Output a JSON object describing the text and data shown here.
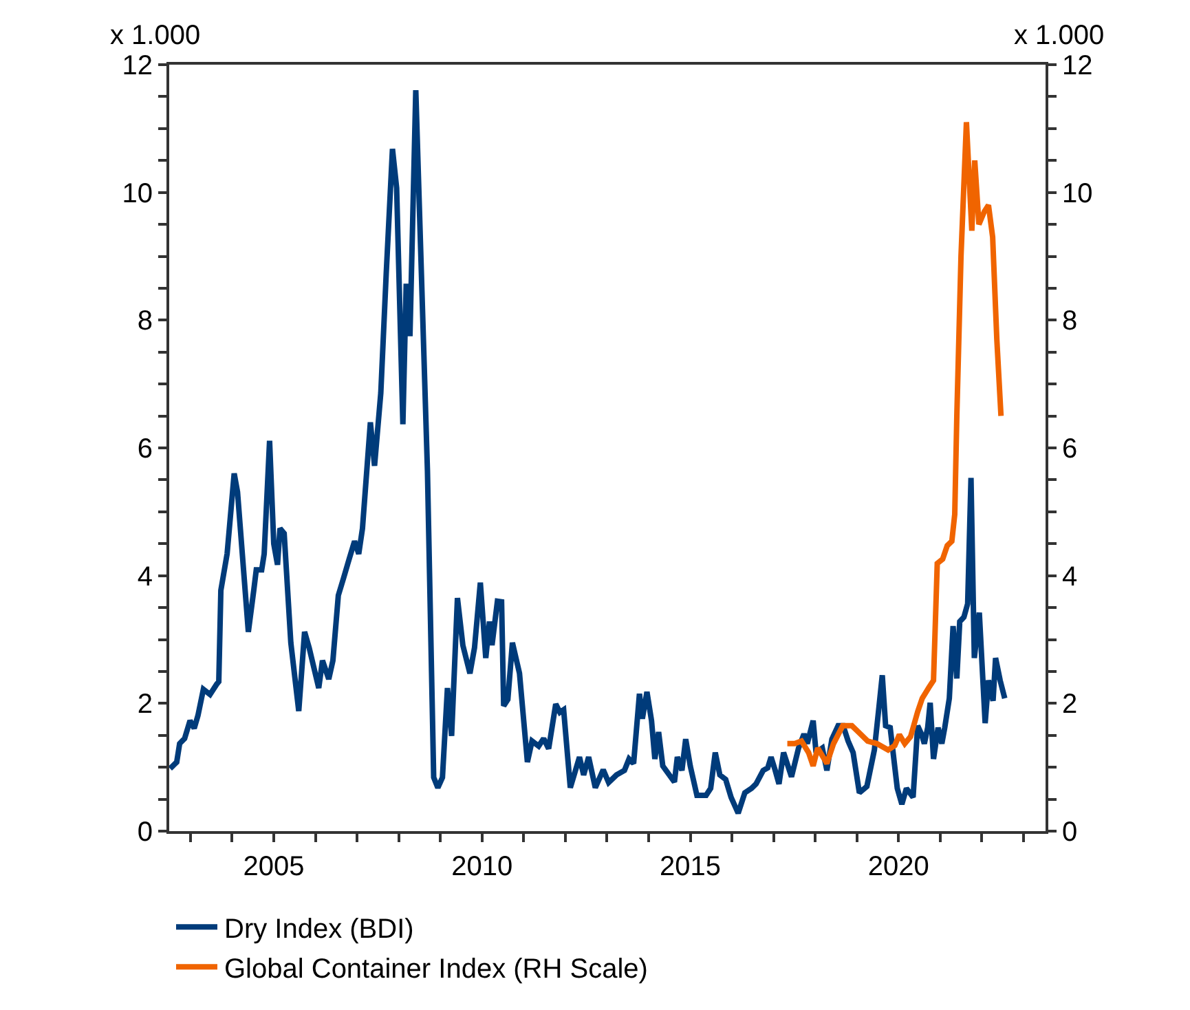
{
  "chart_data": {
    "type": "line",
    "annotations": [
      "x 1.000",
      "x 1.000"
    ],
    "series": [
      {
        "name": "Dry Index (BDI)",
        "color": "#003b7a",
        "x": [
          2002.51,
          2002.67,
          2002.74,
          2002.86,
          2002.99,
          2003.09,
          2003.18,
          2003.31,
          2003.47,
          2003.63,
          2003.68,
          2003.73,
          2003.88,
          2004.05,
          2004.13,
          2004.39,
          2004.52,
          2004.58,
          2004.71,
          2004.77,
          2004.9,
          2005.0,
          2005.09,
          2005.15,
          2005.25,
          2005.41,
          2005.6,
          2005.74,
          2005.85,
          2006.08,
          2006.17,
          2006.32,
          2006.42,
          2006.55,
          2006.68,
          2006.81,
          2006.94,
          2007.04,
          2007.13,
          2007.32,
          2007.42,
          2007.57,
          2007.7,
          2007.85,
          2007.95,
          2008.1,
          2008.18,
          2008.27,
          2008.41,
          2008.69,
          2008.84,
          2008.94,
          2009.05,
          2009.17,
          2009.27,
          2009.41,
          2009.54,
          2009.71,
          2009.82,
          2009.96,
          2010.09,
          2010.18,
          2010.24,
          2010.37,
          2010.47,
          2010.52,
          2010.62,
          2010.73,
          2010.9,
          2011.09,
          2011.2,
          2011.36,
          2011.48,
          2011.6,
          2011.77,
          2011.87,
          2011.96,
          2012.12,
          2012.34,
          2012.44,
          2012.56,
          2012.72,
          2012.91,
          2013.04,
          2013.23,
          2013.42,
          2013.53,
          2013.64,
          2013.78,
          2013.85,
          2013.96,
          2014.07,
          2014.15,
          2014.24,
          2014.34,
          2014.62,
          2014.69,
          2014.8,
          2014.89,
          2015.0,
          2015.16,
          2015.38,
          2015.49,
          2015.6,
          2015.71,
          2015.85,
          2015.98,
          2016.15,
          2016.31,
          2016.47,
          2016.58,
          2016.75,
          2016.86,
          2016.94,
          2017.04,
          2017.13,
          2017.24,
          2017.43,
          2017.6,
          2017.73,
          2017.81,
          2017.95,
          2018.02,
          2018.17,
          2018.28,
          2018.4,
          2018.55,
          2018.67,
          2018.79,
          2018.91,
          2019.06,
          2019.24,
          2019.42,
          2019.53,
          2019.61,
          2019.69,
          2019.8,
          2019.97,
          2020.08,
          2020.19,
          2020.35,
          2020.46,
          2020.55,
          2020.62,
          2020.7,
          2020.76,
          2020.84,
          2020.95,
          2021.04,
          2021.11,
          2021.22,
          2021.31,
          2021.4,
          2021.47,
          2021.57,
          2021.66,
          2021.74,
          2021.82,
          2021.94,
          2022.08,
          2022.16,
          2022.27,
          2022.33,
          2022.44,
          2022.55
        ],
        "values": [
          0.98,
          1.08,
          1.37,
          1.45,
          1.73,
          1.61,
          1.81,
          2.22,
          2.14,
          2.3,
          2.34,
          3.77,
          4.34,
          5.6,
          5.31,
          3.12,
          3.77,
          4.09,
          4.09,
          4.34,
          6.11,
          4.5,
          4.17,
          4.74,
          4.66,
          2.95,
          1.88,
          3.12,
          2.87,
          2.24,
          2.67,
          2.38,
          2.67,
          3.69,
          3.97,
          4.26,
          4.54,
          4.34,
          4.74,
          6.4,
          5.72,
          6.86,
          8.73,
          10.68,
          10.07,
          6.37,
          8.57,
          7.75,
          11.6,
          5.64,
          0.84,
          0.68,
          0.84,
          2.24,
          1.49,
          3.65,
          2.91,
          2.47,
          2.87,
          3.89,
          2.71,
          3.28,
          2.91,
          3.6,
          3.59,
          1.96,
          2.06,
          2.95,
          2.47,
          1.08,
          1.41,
          1.33,
          1.45,
          1.29,
          1.99,
          1.86,
          1.9,
          0.68,
          1.16,
          0.88,
          1.16,
          0.68,
          0.96,
          0.76,
          0.88,
          0.95,
          1.13,
          1.06,
          2.15,
          1.76,
          2.18,
          1.73,
          1.13,
          1.55,
          1.02,
          0.77,
          1.16,
          0.95,
          1.44,
          1.02,
          0.56,
          0.56,
          0.67,
          1.23,
          0.88,
          0.81,
          0.53,
          0.28,
          0.6,
          0.67,
          0.74,
          0.95,
          0.99,
          1.16,
          0.95,
          0.74,
          1.23,
          0.85,
          1.3,
          1.52,
          1.37,
          1.73,
          1.23,
          1.3,
          0.95,
          1.44,
          1.65,
          1.65,
          1.41,
          1.23,
          0.6,
          0.7,
          1.27,
          1.94,
          2.44,
          1.65,
          1.62,
          0.67,
          0.42,
          0.67,
          0.53,
          1.65,
          1.52,
          1.37,
          1.62,
          2.01,
          1.13,
          1.62,
          1.37,
          1.62,
          2.08,
          3.21,
          2.39,
          3.28,
          3.35,
          3.56,
          5.53,
          2.71,
          3.42,
          1.69,
          2.36,
          2.04,
          2.71,
          2.36,
          2.08
        ]
      },
      {
        "name": "Global Container Index (RH Scale)",
        "color": "#f06400",
        "axis": "y2",
        "x": [
          2017.33,
          2017.51,
          2017.67,
          2017.84,
          2017.95,
          2018.06,
          2018.28,
          2018.44,
          2018.66,
          2018.88,
          2019.04,
          2019.26,
          2019.48,
          2019.75,
          2019.91,
          2020.02,
          2020.15,
          2020.29,
          2020.46,
          2020.57,
          2020.73,
          2020.84,
          2020.93,
          2021.06,
          2021.17,
          2021.28,
          2021.35,
          2021.4,
          2021.5,
          2021.63,
          2021.76,
          2021.83,
          2021.93,
          2022.06,
          2022.16,
          2022.26,
          2022.36,
          2022.46
        ],
        "values": [
          1.37,
          1.37,
          1.41,
          1.23,
          1.02,
          1.3,
          1.06,
          1.37,
          1.65,
          1.65,
          1.55,
          1.41,
          1.37,
          1.27,
          1.34,
          1.51,
          1.37,
          1.48,
          1.87,
          2.08,
          2.25,
          2.36,
          4.19,
          4.26,
          4.47,
          4.54,
          4.96,
          6.5,
          9.0,
          11.1,
          9.4,
          10.5,
          9.5,
          9.7,
          9.8,
          9.3,
          7.7,
          6.5
        ]
      }
    ],
    "xlim": [
      2002.49,
      2023.53
    ],
    "xticks": [
      {
        "value": 2003,
        "label": null
      },
      {
        "value": 2004,
        "label": null
      },
      2005,
      {
        "value": 2006,
        "label": null
      },
      {
        "value": 2007,
        "label": null
      },
      {
        "value": 2008,
        "label": null
      },
      {
        "value": 2009,
        "label": null
      },
      2010,
      {
        "value": 2011,
        "label": null
      },
      {
        "value": 2012,
        "label": null
      },
      {
        "value": 2013,
        "label": null
      },
      {
        "value": 2014,
        "label": null
      },
      2015,
      {
        "value": 2016,
        "label": null
      },
      {
        "value": 2017,
        "label": null
      },
      {
        "value": 2018,
        "label": null
      },
      {
        "value": 2019,
        "label": null
      },
      2020,
      {
        "value": 2021,
        "label": null
      },
      {
        "value": 2022,
        "label": null
      },
      {
        "value": 2023,
        "label": null
      }
    ],
    "ylim": [
      0,
      12
    ],
    "yticks": [
      0,
      {
        "value": 0.5,
        "label": null
      },
      {
        "value": 1,
        "label": null
      },
      {
        "value": 1.5,
        "label": null
      },
      2,
      {
        "value": 2.5,
        "label": null
      },
      {
        "value": 3,
        "label": null
      },
      {
        "value": 3.5,
        "label": null
      },
      4,
      {
        "value": 4.5,
        "label": null
      },
      {
        "value": 5,
        "label": null
      },
      {
        "value": 5.5,
        "label": null
      },
      6,
      {
        "value": 6.5,
        "label": null
      },
      {
        "value": 7,
        "label": null
      },
      {
        "value": 7.5,
        "label": null
      },
      8,
      {
        "value": 8.5,
        "label": null
      },
      {
        "value": 9,
        "label": null
      },
      {
        "value": 9.5,
        "label": null
      },
      10,
      {
        "value": 10.5,
        "label": null
      },
      {
        "value": 11,
        "label": null
      },
      {
        "value": 11.5,
        "label": null
      },
      12
    ],
    "y2lim": [
      0,
      12
    ],
    "y2ticks": [
      0,
      {
        "value": 0.5,
        "label": null
      },
      {
        "value": 1,
        "label": null
      },
      {
        "value": 1.5,
        "label": null
      },
      2,
      {
        "value": 2.5,
        "label": null
      },
      {
        "value": 3,
        "label": null
      },
      {
        "value": 3.5,
        "label": null
      },
      4,
      {
        "value": 4.5,
        "label": null
      },
      {
        "value": 5,
        "label": null
      },
      {
        "value": 5.5,
        "label": null
      },
      6,
      {
        "value": 6.5,
        "label": null
      },
      {
        "value": 7,
        "label": null
      },
      {
        "value": 7.5,
        "label": null
      },
      8,
      {
        "value": 8.5,
        "label": null
      },
      {
        "value": 9,
        "label": null
      },
      {
        "value": 9.5,
        "label": null
      },
      10,
      {
        "value": 10.5,
        "label": null
      },
      {
        "value": 11,
        "label": null
      },
      {
        "value": 11.5,
        "label": null
      },
      12
    ],
    "legend": "bottom",
    "line_style": "solid",
    "marker": "none"
  }
}
